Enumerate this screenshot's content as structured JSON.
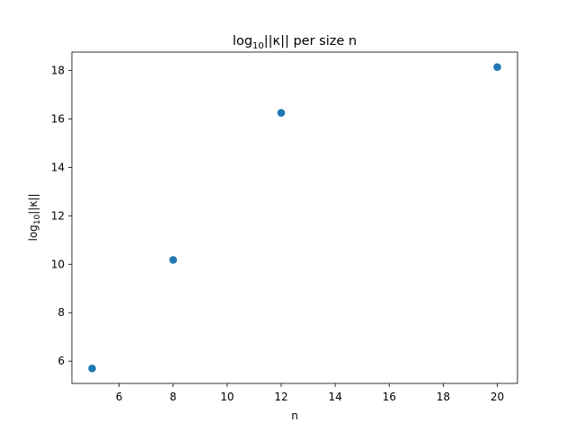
{
  "chart_data": {
    "type": "scatter",
    "title": {
      "main": "log",
      "sub": "10",
      "rest": "||κ|| per size n"
    },
    "xlabel": "n",
    "ylabel": {
      "main": "log",
      "sub": "10",
      "rest": "||κ||"
    },
    "x": [
      5,
      8,
      12,
      20
    ],
    "y": [
      5.7,
      10.18,
      16.25,
      18.14
    ],
    "xlim": [
      4.25,
      20.75
    ],
    "ylim": [
      5.08,
      18.76
    ],
    "xticks": [
      6,
      8,
      10,
      12,
      14,
      16,
      18,
      20
    ],
    "yticks": [
      6,
      8,
      10,
      12,
      14,
      16,
      18
    ],
    "grid": false,
    "marker_color": "#1f77b4"
  }
}
